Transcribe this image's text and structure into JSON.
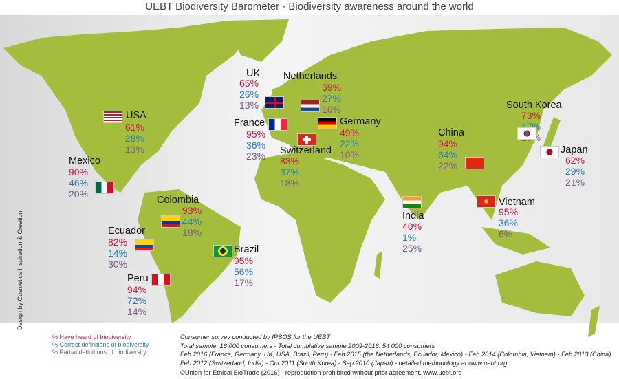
{
  "title": "UEBT Biodiversity Barometer - Biodiversity awareness around the world",
  "colors": {
    "heard": "#c8184a",
    "correct": "#2a7ab8",
    "partial": "#7a5a8a",
    "land": "#a4bd3c"
  },
  "countries": [
    {
      "name": "USA",
      "flag": "usa",
      "heard": "61%",
      "correct": "28%",
      "partial": "13%"
    },
    {
      "name": "Mexico",
      "flag": "mexico",
      "heard": "90%",
      "correct": "46%",
      "partial": "20%"
    },
    {
      "name": "Colombia",
      "flag": "colombia",
      "heard": "93%",
      "correct": "44%",
      "partial": "18%"
    },
    {
      "name": "Ecuador",
      "flag": "ecuador",
      "heard": "82%",
      "correct": "14%",
      "partial": "30%"
    },
    {
      "name": "Peru",
      "flag": "peru",
      "heard": "94%",
      "correct": "72%",
      "partial": "14%"
    },
    {
      "name": "Brazil",
      "flag": "brazil",
      "heard": "95%",
      "correct": "56%",
      "partial": "17%"
    },
    {
      "name": "UK",
      "flag": "uk",
      "heard": "65%",
      "correct": "26%",
      "partial": "13%"
    },
    {
      "name": "Netherlands",
      "flag": "netherlands",
      "heard": "59%",
      "correct": "27%",
      "partial": "16%"
    },
    {
      "name": "France",
      "flag": "france",
      "heard": "95%",
      "correct": "36%",
      "partial": "23%"
    },
    {
      "name": "Germany",
      "flag": "germany",
      "heard": "49%",
      "correct": "22%",
      "partial": "10%"
    },
    {
      "name": "Switzerland",
      "flag": "switzerland",
      "heard": "83%",
      "correct": "37%",
      "partial": "18%"
    },
    {
      "name": "China",
      "flag": "china",
      "heard": "94%",
      "correct": "64%",
      "partial": "22%"
    },
    {
      "name": "India",
      "flag": "india",
      "heard": "40%",
      "correct": "1%",
      "partial": "25%"
    },
    {
      "name": "South Korea",
      "flag": "south-korea",
      "heard": "73%",
      "correct": "47%",
      "partial": "16%"
    },
    {
      "name": "Japan",
      "flag": "japan",
      "heard": "62%",
      "correct": "29%",
      "partial": "21%"
    },
    {
      "name": "Vietnam",
      "flag": "vietnam",
      "heard": "95%",
      "correct": "36%",
      "partial": "6%"
    }
  ],
  "legend": [
    "% Have heard of biodiversity",
    "% Correct definitions of biodiversity",
    "% Partial definitions of biodiversity"
  ],
  "notes": [
    "Consumer survey conducted by IPSOS for the UEBT",
    "Total sample: 16 000 consumers - Total cumulative sample 2009-2016: 54 000 consumers",
    "Feb 2016 (France, Germany, UK, USA, Brazil, Peru) - Feb 2015 (the Netherlands, Ecuador, Mexico) - Feb 2014 (Colombia, Vietnam) - Feb 2013 (China)",
    "Feb 2012 (Switzerland, India) - Oct 2011 (South Korea) - Sep 2010 (Japan) - detailed methodology at www.uebt.org"
  ],
  "copyright": "©Union for Ethical BioTrade (2016) - reproduction prohibited without prior agreement. www.uebt.org",
  "credit": "Design by Cosmetics Inspiration & Creation"
}
